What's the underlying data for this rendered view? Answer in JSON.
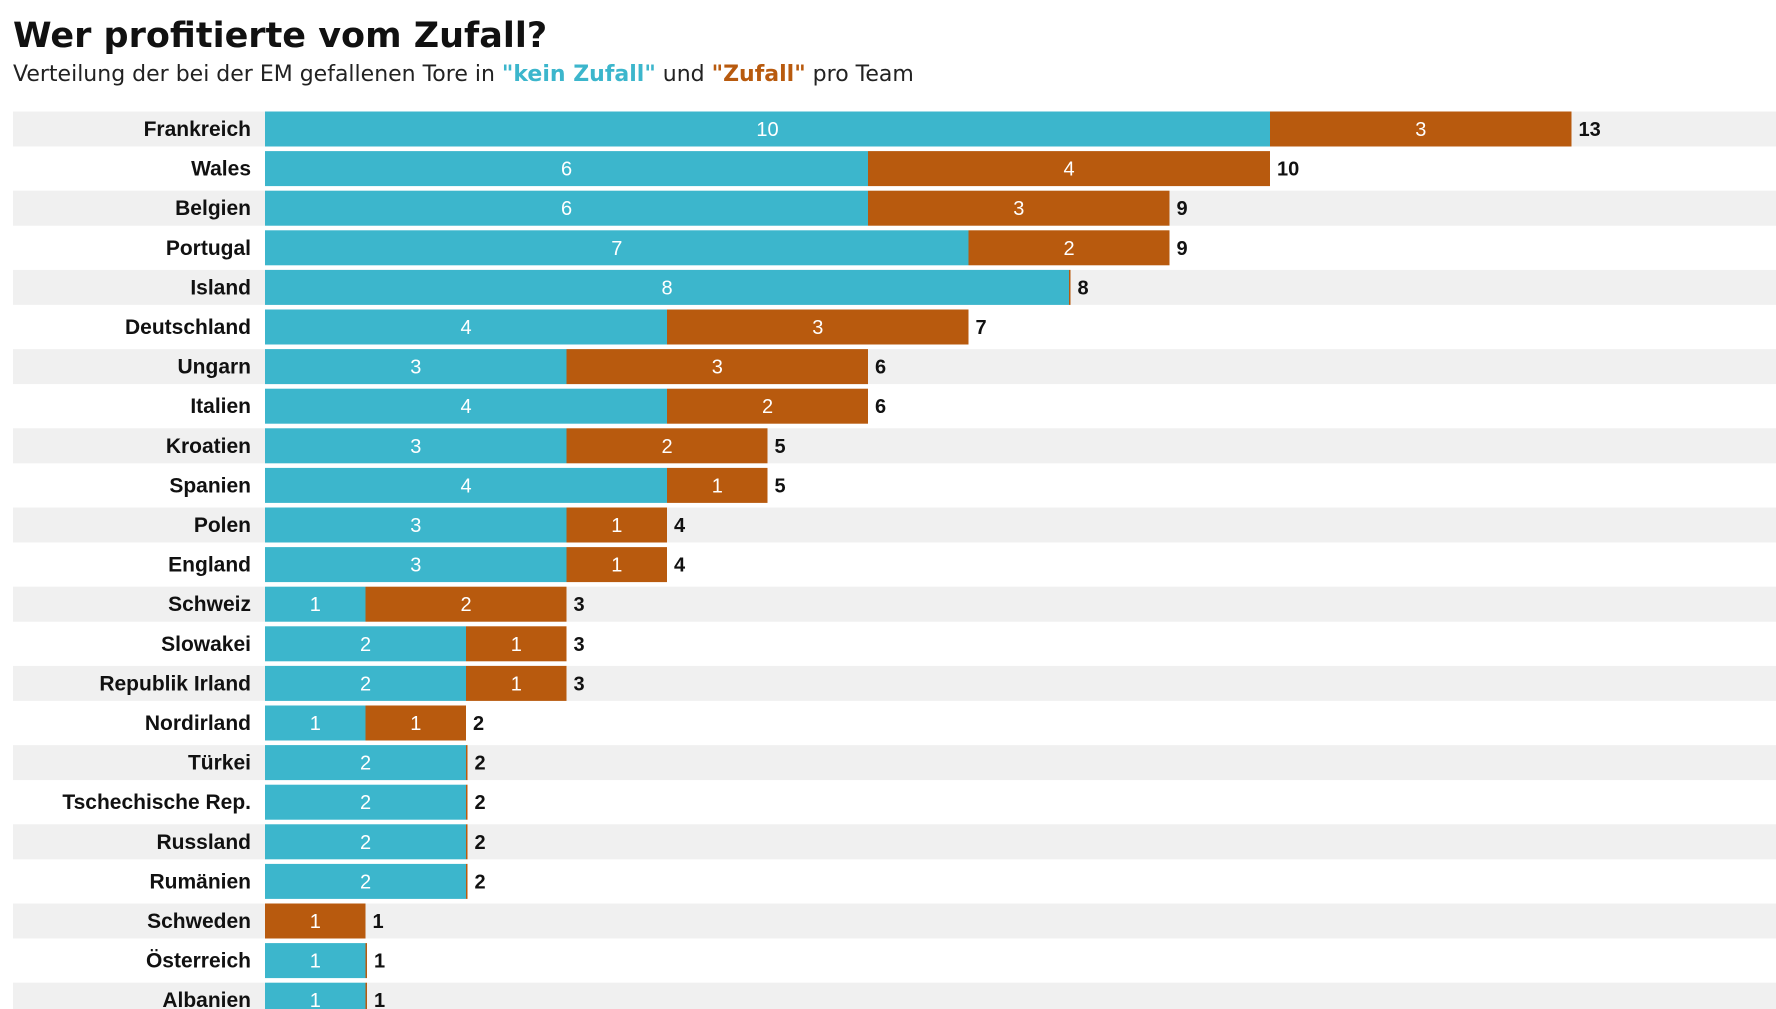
{
  "header": {
    "title": "Wer profitierte vom Zufall?",
    "subtitle_pre": "Verteilung der bei der EM gefallenen Tore in ",
    "subtitle_kz": "\"kein Zufall\"",
    "subtitle_mid": " und ",
    "subtitle_z": "\"Zufall\"",
    "subtitle_post": " pro Team"
  },
  "colors": {
    "kein_zufall": "#3cb6cc",
    "zufall": "#b85a0e",
    "row_band": "#f0f0f0"
  },
  "chart_data": {
    "type": "bar",
    "orientation": "horizontal",
    "stacked": true,
    "categories": [
      "Frankreich",
      "Wales",
      "Belgien",
      "Portugal",
      "Island",
      "Deutschland",
      "Ungarn",
      "Italien",
      "Kroatien",
      "Spanien",
      "Polen",
      "England",
      "Schweiz",
      "Slowakei",
      "Republik Irland",
      "Nordirland",
      "Türkei",
      "Tschechische Rep.",
      "Russland",
      "Rumänien",
      "Schweden",
      "Österreich",
      "Albanien"
    ],
    "series": [
      {
        "name": "\"kein Zufall\"",
        "values": [
          10,
          6,
          6,
          7,
          8,
          4,
          3,
          4,
          3,
          4,
          3,
          3,
          1,
          2,
          2,
          1,
          2,
          2,
          2,
          2,
          0,
          1,
          1
        ]
      },
      {
        "name": "\"Zufall\"",
        "values": [
          3,
          4,
          3,
          2,
          0,
          3,
          3,
          2,
          2,
          1,
          1,
          1,
          2,
          1,
          1,
          1,
          0,
          0,
          0,
          0,
          1,
          0,
          0
        ]
      }
    ],
    "totals": [
      13,
      10,
      9,
      9,
      8,
      7,
      6,
      6,
      5,
      5,
      4,
      4,
      3,
      3,
      3,
      2,
      2,
      2,
      2,
      2,
      1,
      1,
      1
    ],
    "title": "Wer profitierte vom Zufall?",
    "xlabel": "",
    "ylabel": "",
    "xlim": [
      0,
      13
    ],
    "grid": false,
    "legend": "in subtitle"
  }
}
